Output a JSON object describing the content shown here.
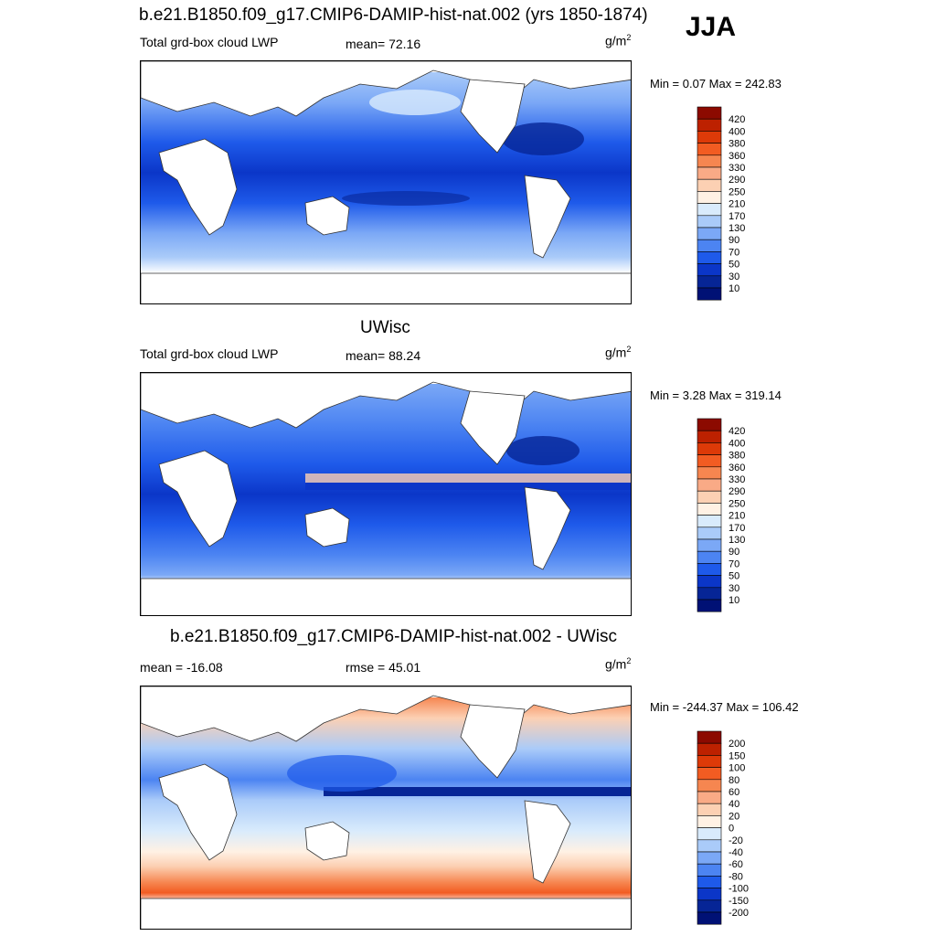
{
  "season": "JJA",
  "panels": [
    {
      "title": "b.e21.B1850.f09_g17.CMIP6-DAMIP-hist-nat.002 (yrs 1850-1874)",
      "left_label": "Total grd-box cloud LWP",
      "mid_label": "mean=  72.16",
      "unit_base": "g/m",
      "unit_sup": "2",
      "minmax": "Min =   0.07 Max = 242.83"
    },
    {
      "title": "UWisc",
      "left_label": "Total grd-box cloud LWP",
      "mid_label": "mean=  88.24",
      "unit_base": "g/m",
      "unit_sup": "2",
      "minmax": "Min =   3.28 Max = 319.14"
    },
    {
      "title": "b.e21.B1850.f09_g17.CMIP6-DAMIP-hist-nat.002 - UWisc",
      "left_label": "mean = -16.08",
      "mid_label": "rmse =  45.01",
      "unit_base": "g/m",
      "unit_sup": "2",
      "minmax": "Min = -244.37 Max = 106.42"
    }
  ],
  "colorbars": {
    "abs": {
      "labels": [
        "420",
        "400",
        "380",
        "360",
        "330",
        "290",
        "250",
        "210",
        "170",
        "130",
        "90",
        "70",
        "50",
        "30",
        "10"
      ],
      "colors": [
        "#8c0a00",
        "#bd2100",
        "#dd3a08",
        "#f25c22",
        "#f68650",
        "#f9aa86",
        "#fcd0b3",
        "#fff1e4",
        "#d9ebfc",
        "#aacbf9",
        "#7ba8f6",
        "#4c84f2",
        "#1e5aea",
        "#0b36c8",
        "#062596",
        "#001175"
      ]
    },
    "diff": {
      "labels": [
        "200",
        "150",
        "100",
        "80",
        "60",
        "40",
        "20",
        "0",
        "-20",
        "-40",
        "-60",
        "-80",
        "-100",
        "-150",
        "-200"
      ],
      "colors": [
        "#8c0a00",
        "#bd2100",
        "#dd3a08",
        "#f25c22",
        "#f68650",
        "#f9aa86",
        "#fcd0b3",
        "#fff1e4",
        "#d9ebfc",
        "#aacbf9",
        "#7ba8f6",
        "#4c84f2",
        "#1e5aea",
        "#0b36c8",
        "#062596",
        "#001175"
      ]
    }
  },
  "chart_data": [
    {
      "type": "heatmap",
      "title": "b.e21.B1850.f09_g17.CMIP6-DAMIP-hist-nat.002 (yrs 1850-1874)",
      "subtitle": "Total grd-box cloud LWP",
      "mean": 72.16,
      "unit": "g/m2",
      "min": 0.07,
      "max": 242.83,
      "levels": [
        10,
        30,
        50,
        70,
        90,
        130,
        170,
        210,
        250,
        290,
        330,
        360,
        380,
        400,
        420
      ]
    },
    {
      "type": "heatmap",
      "title": "UWisc",
      "subtitle": "Total grd-box cloud LWP",
      "mean": 88.24,
      "unit": "g/m2",
      "min": 3.28,
      "max": 319.14,
      "levels": [
        10,
        30,
        50,
        70,
        90,
        130,
        170,
        210,
        250,
        290,
        330,
        360,
        380,
        400,
        420
      ]
    },
    {
      "type": "heatmap",
      "title": "b.e21.B1850.f09_g17.CMIP6-DAMIP-hist-nat.002 - UWisc",
      "mean": -16.08,
      "rmse": 45.01,
      "unit": "g/m2",
      "min": -244.37,
      "max": 106.42,
      "levels": [
        -200,
        -150,
        -100,
        -80,
        -60,
        -40,
        -20,
        0,
        20,
        40,
        60,
        80,
        100,
        150,
        200
      ]
    }
  ]
}
